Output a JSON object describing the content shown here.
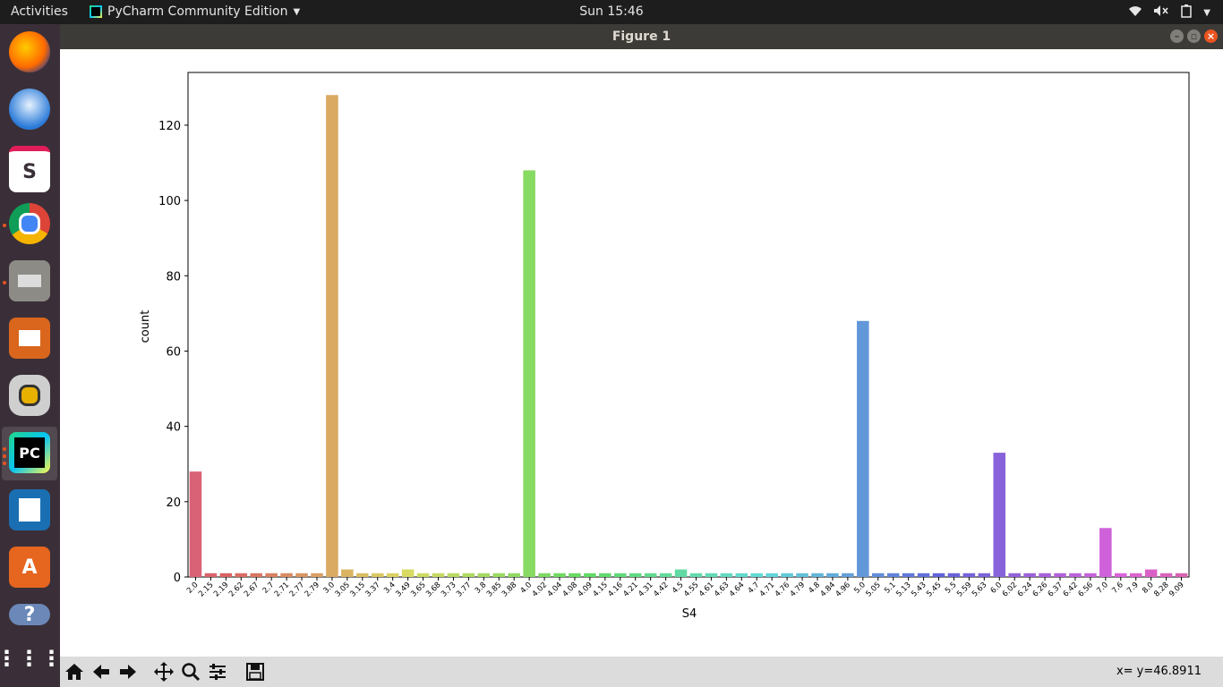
{
  "topbar": {
    "activities": "Activities",
    "app_name": "PyCharm Community Edition",
    "clock": "Sun 15:46"
  },
  "dock": {
    "items": [
      "firefox-icon",
      "thunderbird-icon",
      "slack-icon",
      "chrome-icon",
      "files-icon",
      "impress-icon",
      "rhythmbox-icon",
      "pycharm-icon",
      "writer-icon",
      "software-center-icon",
      "help-icon",
      "app-grid-icon"
    ]
  },
  "window": {
    "title": "Figure 1"
  },
  "status": {
    "coords": "x= y=46.8911"
  },
  "toolbar": {
    "buttons": [
      "home-icon",
      "back-icon",
      "forward-icon",
      "pan-icon",
      "zoom-icon",
      "configure-icon",
      "save-icon"
    ]
  },
  "chart_data": {
    "type": "bar",
    "xlabel": "S4",
    "ylabel": "count",
    "ylim": [
      0,
      134
    ],
    "yticks": [
      0,
      20,
      40,
      60,
      80,
      100,
      120
    ],
    "categories": [
      "2.0",
      "2.15",
      "2.19",
      "2.62",
      "2.67",
      "2.7",
      "2.71",
      "2.77",
      "2.79",
      "3.0",
      "3.05",
      "3.15",
      "3.37",
      "3.4",
      "3.49",
      "3.65",
      "3.68",
      "3.73",
      "3.77",
      "3.8",
      "3.85",
      "3.88",
      "4.0",
      "4.02",
      "4.04",
      "4.08",
      "4.09",
      "4.15",
      "4.16",
      "4.21",
      "4.31",
      "4.42",
      "4.5",
      "4.55",
      "4.61",
      "4.63",
      "4.64",
      "4.7",
      "4.71",
      "4.76",
      "4.79",
      "4.8",
      "4.84",
      "4.96",
      "5.0",
      "5.05",
      "5.1",
      "5.13",
      "5.43",
      "5.45",
      "5.5",
      "5.59",
      "5.63",
      "6.0",
      "6.02",
      "6.24",
      "6.26",
      "6.37",
      "6.42",
      "6.56",
      "7.0",
      "7.6",
      "7.9",
      "8.0",
      "8.28",
      "9.09"
    ],
    "values": [
      28,
      1,
      1,
      1,
      1,
      1,
      1,
      1,
      1,
      128,
      2,
      1,
      1,
      1,
      2,
      1,
      1,
      1,
      1,
      1,
      1,
      1,
      108,
      1,
      1,
      1,
      1,
      1,
      1,
      1,
      1,
      1,
      2,
      1,
      1,
      1,
      1,
      1,
      1,
      1,
      1,
      1,
      1,
      1,
      68,
      1,
      1,
      1,
      1,
      1,
      1,
      1,
      1,
      33,
      1,
      1,
      1,
      1,
      1,
      1,
      13,
      1,
      1,
      2,
      1,
      1
    ],
    "grid": false
  }
}
